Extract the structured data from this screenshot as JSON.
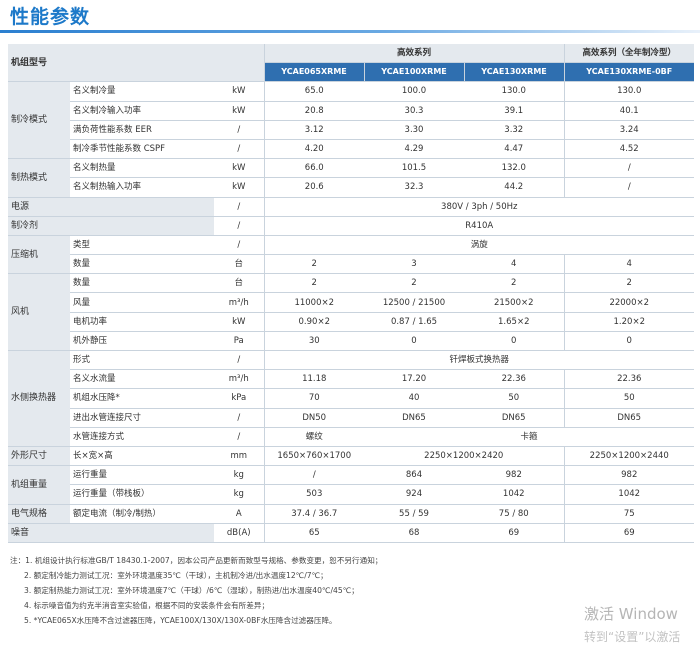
{
  "title": "性能参数",
  "header": {
    "row_label": "机组型号",
    "series_high": "高效系列",
    "series_all": "高效系列（全年制冷型）",
    "models": [
      "YCAE065XRME",
      "YCAE100XRME",
      "YCAE130XRME",
      "YCAE130XRME-0BF"
    ]
  },
  "rows": {
    "cool_cap": {
      "group": "制冷模式",
      "label": "名义制冷量",
      "unit": "kW",
      "v": [
        "65.0",
        "100.0",
        "130.0",
        "130.0"
      ]
    },
    "cool_pow": {
      "label": "名义制冷输入功率",
      "unit": "kW",
      "v": [
        "20.8",
        "30.3",
        "39.1",
        "40.1"
      ]
    },
    "eer": {
      "label": "满负荷性能系数 EER",
      "unit": "/",
      "v": [
        "3.12",
        "3.30",
        "3.32",
        "3.24"
      ]
    },
    "cspf": {
      "label": "制冷季节性能系数 CSPF",
      "unit": "/",
      "v": [
        "4.20",
        "4.29",
        "4.47",
        "4.52"
      ]
    },
    "heat_cap": {
      "group": "制热模式",
      "label": "名义制热量",
      "unit": "kW",
      "v": [
        "66.0",
        "101.5",
        "132.0",
        "/"
      ]
    },
    "heat_pow": {
      "label": "名义制热输入功率",
      "unit": "kW",
      "v": [
        "20.6",
        "32.3",
        "44.2",
        "/"
      ]
    },
    "power": {
      "group": "电源",
      "unit": "/",
      "value": "380V / 3ph / 50Hz"
    },
    "refrig": {
      "group": "制冷剂",
      "unit": "/",
      "value": "R410A"
    },
    "comp_type": {
      "group": "压缩机",
      "label": "类型",
      "unit": "/",
      "value": "涡旋"
    },
    "comp_qty": {
      "label": "数量",
      "unit": "台",
      "v": [
        "2",
        "3",
        "4",
        "4"
      ]
    },
    "fan_qty": {
      "group": "风机",
      "label": "数量",
      "unit": "台",
      "v": [
        "2",
        "2",
        "2",
        "2"
      ]
    },
    "fan_air": {
      "label": "风量",
      "unit": "m³/h",
      "v": [
        "11000×2",
        "12500 / 21500",
        "21500×2",
        "22000×2"
      ]
    },
    "fan_pow": {
      "label": "电机功率",
      "unit": "kW",
      "v": [
        "0.90×2",
        "0.87 / 1.65",
        "1.65×2",
        "1.20×2"
      ]
    },
    "fan_esp": {
      "label": "机外静压",
      "unit": "Pa",
      "v": [
        "30",
        "0",
        "0",
        "0"
      ]
    },
    "hx_type": {
      "group": "水侧换热器",
      "label": "形式",
      "unit": "/",
      "value": "钎焊板式换热器"
    },
    "hx_flow": {
      "label": "名义水流量",
      "unit": "m³/h",
      "v": [
        "11.18",
        "17.20",
        "22.36",
        "22.36"
      ]
    },
    "hx_dp": {
      "label": "机组水压降*",
      "unit": "kPa",
      "v": [
        "70",
        "40",
        "50",
        "50"
      ]
    },
    "hx_pipe": {
      "label": "进出水管连接尺寸",
      "unit": "/",
      "v": [
        "DN50",
        "DN65",
        "DN65",
        "DN65"
      ]
    },
    "hx_conn": {
      "label": "水管连接方式",
      "unit": "/",
      "v1": "螺纹",
      "v2": "卡箍"
    },
    "dims": {
      "group": "外形尺寸",
      "label": "长×宽×高",
      "unit": "mm",
      "v1": "1650×760×1700",
      "v2": "2250×1200×2420",
      "v3": "2250×1200×2440"
    },
    "wt_run": {
      "group": "机组重量",
      "label": "运行重量",
      "unit": "kg",
      "v": [
        "/",
        "864",
        "982",
        "982"
      ]
    },
    "wt_pal": {
      "label": "运行重量（带栈板）",
      "unit": "kg",
      "v": [
        "503",
        "924",
        "1042",
        "1042"
      ]
    },
    "elec": {
      "group": "电气规格",
      "label": "额定电流（制冷/制热）",
      "unit": "A",
      "v": [
        "37.4 / 36.7",
        "55 / 59",
        "75 / 80",
        "75"
      ]
    },
    "noise": {
      "group": "噪音",
      "unit": "dB(A)",
      "v": [
        "65",
        "68",
        "69",
        "69"
      ]
    }
  },
  "notes": [
    "注：1. 机组设计执行标准GB/T 18430.1-2007，因本公司产品更新而致型号规格、参数变更，恕不另行通知；",
    "2. 额定制冷能力测试工况：室外环境温度35℃（干球），主机制冷进/出水温度12℃/7℃；",
    "3. 额定制热能力测试工况：室外环境温度7℃（干球）/6℃（湿球），制热进/出水温度40℃/45℃；",
    "4. 标示噪音值为约克半消音室实验值，根据不同的安装条件会有所差异；",
    "5. *YCAE065X水压降不含过滤器压降，YCAE100X/130X/130X-0BF水压降含过滤器压降。"
  ],
  "watermark": {
    "line1": "激活 Window",
    "line2": "转到“设置”以激活"
  }
}
